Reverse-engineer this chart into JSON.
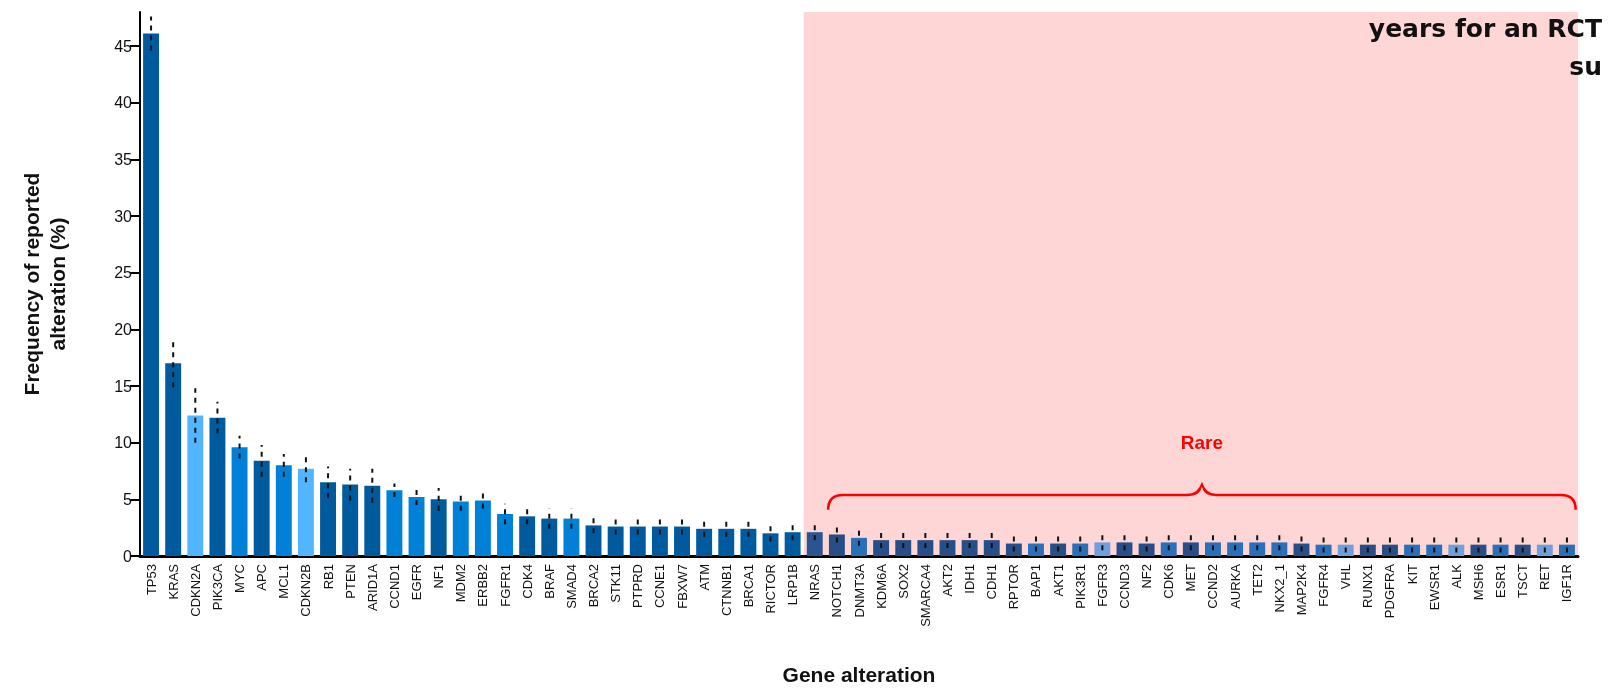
{
  "chart_data": {
    "type": "bar",
    "xlabel": "Gene alteration",
    "ylabel": "Frequency of reported alteration (%)",
    "annotations": [
      "years for an RCT",
      "su"
    ],
    "categories": [
      "TP53",
      "KRAS",
      "CDKN2A",
      "PIK3CA",
      "MYC",
      "APC",
      "MCL1",
      "CDKN2B",
      "RB1",
      "PTEN",
      "ARID1A",
      "CCND1",
      "EGFR",
      "NF1",
      "MDM2",
      "ERBB2",
      "FGFR1",
      "CDK4",
      "BRAF",
      "SMAD4",
      "BRCA2",
      "STK11",
      "PTPRD",
      "CCNE1",
      "FBXW7",
      "ATM",
      "CTNNB1",
      "BRCA1",
      "RICTOR",
      "LRP1B",
      "NRAS",
      "NOTCH1",
      "DNMT3A",
      "KDM6A",
      "SOX2",
      "SMARCA4",
      "AKT2",
      "IDH1",
      "CDH1",
      "RPTOR",
      "BAP1",
      "AKT1",
      "PIK3R1",
      "FGFR3",
      "CCND3",
      "NF2",
      "CDK6",
      "MET",
      "CCND2",
      "AURKA",
      "TET2",
      "NKX2_1",
      "MAP2K4",
      "FGFR4",
      "VHL",
      "RUNX1",
      "PDGFRA",
      "KIT",
      "EWSR1",
      "ALK",
      "MSH6",
      "ESR1",
      "TSCT",
      "RET",
      "IGF1R"
    ],
    "values": [
      46.1,
      17.0,
      12.4,
      12.2,
      9.6,
      8.4,
      8.0,
      7.7,
      6.5,
      6.3,
      6.2,
      5.8,
      5.2,
      5.0,
      4.8,
      4.9,
      3.7,
      3.5,
      3.3,
      3.3,
      2.7,
      2.6,
      2.6,
      2.6,
      2.6,
      2.4,
      2.4,
      2.4,
      2.0,
      2.1,
      2.1,
      1.9,
      1.6,
      1.4,
      1.4,
      1.4,
      1.4,
      1.4,
      1.4,
      1.1,
      1.1,
      1.1,
      1.1,
      1.2,
      1.2,
      1.1,
      1.2,
      1.2,
      1.2,
      1.2,
      1.2,
      1.2,
      1.1,
      1.0,
      1.0,
      1.0,
      1.0,
      1.0,
      1.0,
      1.0,
      1.0,
      1.0,
      1.0,
      1.0,
      1.0
    ],
    "errors": [
      1.5,
      2.1,
      2.4,
      1.4,
      1.0,
      1.4,
      1.0,
      1.2,
      1.4,
      1.4,
      1.5,
      0.6,
      0.7,
      1.0,
      0.8,
      0.7,
      0.9,
      0.7,
      0.9,
      0.9,
      0.7,
      0.7,
      0.7,
      0.7,
      0.7,
      0.7,
      0.7,
      0.7,
      0.7,
      0.7,
      0.7,
      0.7,
      0.7,
      0.7,
      0.7,
      0.7,
      0.7,
      0.7,
      0.7,
      0.7,
      0.7,
      0.7,
      0.7,
      0.7,
      0.7,
      0.7,
      0.7,
      0.7,
      0.7,
      0.7,
      0.7,
      0.7,
      0.7,
      0.7,
      0.7,
      0.7,
      0.7,
      0.7,
      0.7,
      0.7,
      0.7,
      0.7,
      0.7,
      0.7,
      0.7
    ],
    "colors": [
      "#005a9e",
      "#005a9e",
      "#52b5ff",
      "#005a9e",
      "#0080d6",
      "#005a9e",
      "#0080d6",
      "#52b5ff",
      "#005a9e",
      "#005a9e",
      "#005a9e",
      "#0080d6",
      "#0080d6",
      "#005a9e",
      "#0080d6",
      "#0080d6",
      "#0080d6",
      "#005a9e",
      "#005a9e",
      "#0080d6",
      "#005a9e",
      "#005a9e",
      "#005a9e",
      "#005a9e",
      "#005a9e",
      "#005a9e",
      "#005a9e",
      "#005a9e",
      "#005a9e",
      "#005a9e",
      "#2a5590",
      "#274e87",
      "#2a6fba",
      "#274e87",
      "#274e87",
      "#274e87",
      "#274e87",
      "#274e87",
      "#274e87",
      "#274e87",
      "#2a6fba",
      "#274e87",
      "#2a6fba",
      "#6fa0dc",
      "#274e87",
      "#274e87",
      "#2a6fba",
      "#274e87",
      "#2a6fba",
      "#2a6fba",
      "#2a6fba",
      "#2a6fba",
      "#274e87",
      "#2a6fba",
      "#6fa0dc",
      "#274e87",
      "#274e87",
      "#2a6fba",
      "#2a6fba",
      "#6fa0dc",
      "#274e87",
      "#2a6fba",
      "#274e87",
      "#6fa0dc",
      "#2a6fba"
    ],
    "ylim": [
      0,
      48
    ],
    "yticks": [
      0,
      5,
      10,
      15,
      20,
      25,
      30,
      35,
      40,
      45
    ],
    "bands": [
      {
        "axis": "x",
        "from": "NRAS",
        "to": "IGF1R",
        "label": "Rare",
        "color": "#ffd6d6"
      }
    ],
    "grid": false
  }
}
